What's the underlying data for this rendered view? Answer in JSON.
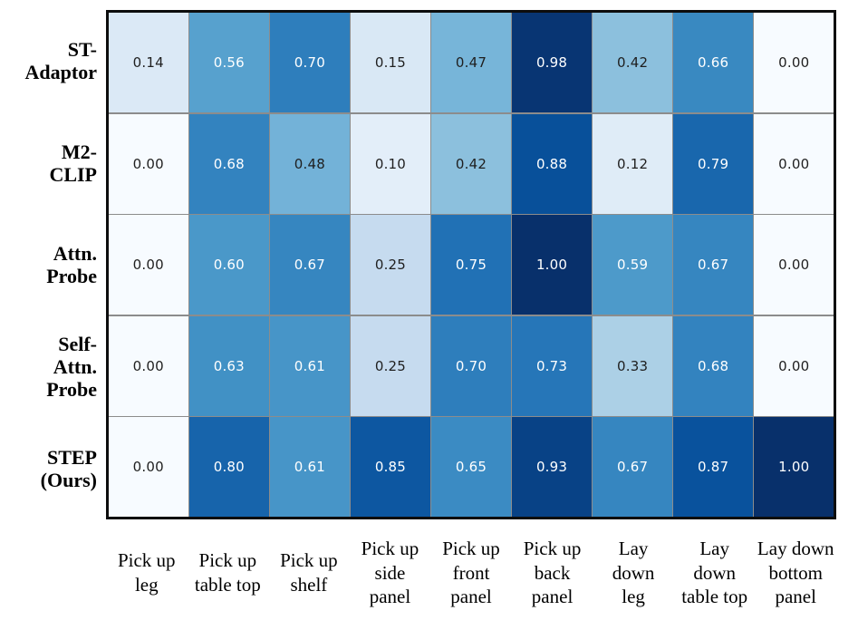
{
  "figure": {
    "background": "#ffffff",
    "frame_color": "#0d0d0d",
    "grid_line_color": "#8c8c8c"
  },
  "chart_data": {
    "type": "heatmap",
    "title": "",
    "xlabel": "",
    "ylabel": "",
    "vmin": 0,
    "vmax": 1,
    "colormap": "Blues",
    "row_labels": [
      "ST-\nAdaptor",
      "M2-\nCLIP",
      "Attn.\nProbe",
      "Self-\nAttn.\nProbe",
      "STEP\n(Ours)"
    ],
    "col_labels": [
      "Pick up\nleg",
      "Pick up\ntable top",
      "Pick up\nshelf",
      "Pick up\nside\npanel",
      "Pick up\nfront\npanel",
      "Pick up\nback\npanel",
      "Lay\ndown\nleg",
      "Lay\ndown\ntable top",
      "Lay down\nbottom\npanel"
    ],
    "values": [
      [
        0.14,
        0.56,
        0.7,
        0.15,
        0.47,
        0.98,
        0.42,
        0.66,
        0.0
      ],
      [
        0.0,
        0.68,
        0.48,
        0.1,
        0.42,
        0.88,
        0.12,
        0.79,
        0.0
      ],
      [
        0.0,
        0.6,
        0.67,
        0.25,
        0.75,
        1.0,
        0.59,
        0.67,
        0.0
      ],
      [
        0.0,
        0.63,
        0.61,
        0.25,
        0.7,
        0.73,
        0.33,
        0.68,
        0.0
      ],
      [
        0.0,
        0.8,
        0.61,
        0.85,
        0.65,
        0.93,
        0.67,
        0.87,
        1.0
      ]
    ],
    "annotation": {
      "decimals": 2,
      "dark_cell_text": "#ffffff",
      "light_cell_text": "#1f1f1f",
      "white_text_threshold": 0.5
    },
    "colormap_stops": [
      {
        "pos": 0.0,
        "color": "#f7fbff"
      },
      {
        "pos": 0.125,
        "color": "#deebf7"
      },
      {
        "pos": 0.25,
        "color": "#c6dbef"
      },
      {
        "pos": 0.375,
        "color": "#9ecae1"
      },
      {
        "pos": 0.5,
        "color": "#6baed6"
      },
      {
        "pos": 0.625,
        "color": "#4292c6"
      },
      {
        "pos": 0.75,
        "color": "#2171b5"
      },
      {
        "pos": 0.875,
        "color": "#08519c"
      },
      {
        "pos": 1.0,
        "color": "#08306b"
      }
    ]
  }
}
